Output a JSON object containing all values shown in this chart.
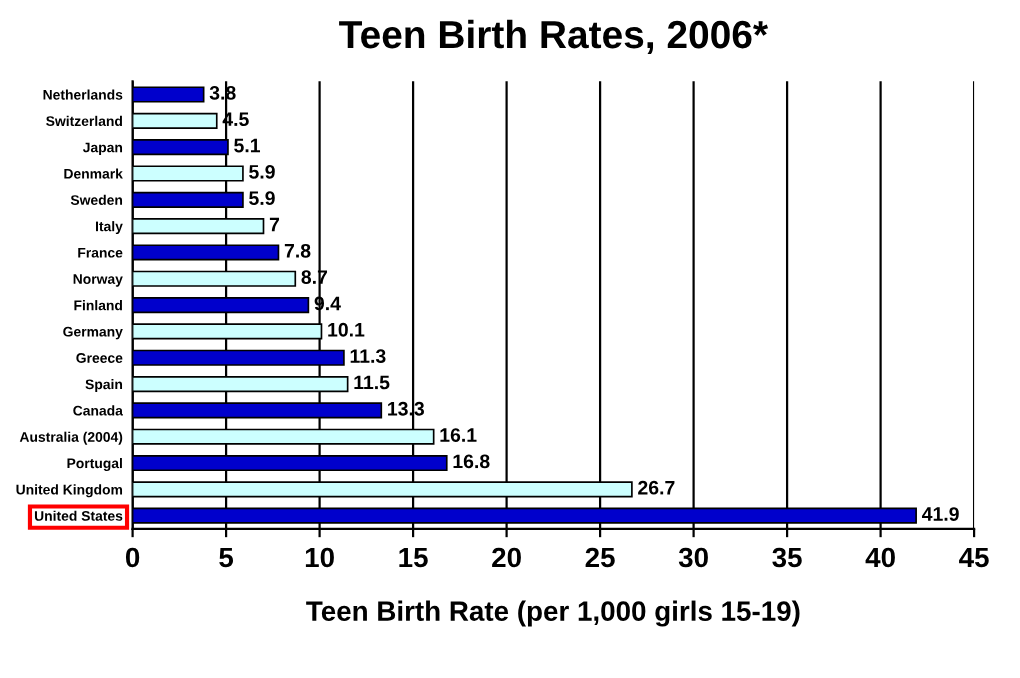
{
  "chart_data": {
    "type": "bar",
    "orientation": "horizontal",
    "title": "Teen Birth Rates, 2006*",
    "xlabel": "Teen Birth Rate (per 1,000 girls 15-19)",
    "categories": [
      "Netherlands",
      "Switzerland",
      "Japan",
      "Denmark",
      "Sweden",
      "Italy",
      "France",
      "Norway",
      "Finland",
      "Germany",
      "Greece",
      "Spain",
      "Canada",
      "Australia (2004)",
      "Portugal",
      "United Kingdom",
      "United States"
    ],
    "values": [
      3.8,
      4.5,
      5.1,
      5.9,
      5.9,
      7,
      7.8,
      8.7,
      9.4,
      10.1,
      11.3,
      11.5,
      13.3,
      16.1,
      16.8,
      26.7,
      41.9
    ],
    "colors": [
      "#0000cc",
      "#ccffff",
      "#0000cc",
      "#ccffff",
      "#0000cc",
      "#ccffff",
      "#0000cc",
      "#ccffff",
      "#0000cc",
      "#ccffff",
      "#0000cc",
      "#ccffff",
      "#0000cc",
      "#ccffff",
      "#0000cc",
      "#ccffff",
      "#0000cc"
    ],
    "xlim": [
      0,
      45
    ],
    "xticks": [
      0,
      5,
      10,
      15,
      20,
      25,
      30,
      35,
      40,
      45
    ],
    "grid": "x",
    "data_labels": true,
    "legend": false
  }
}
